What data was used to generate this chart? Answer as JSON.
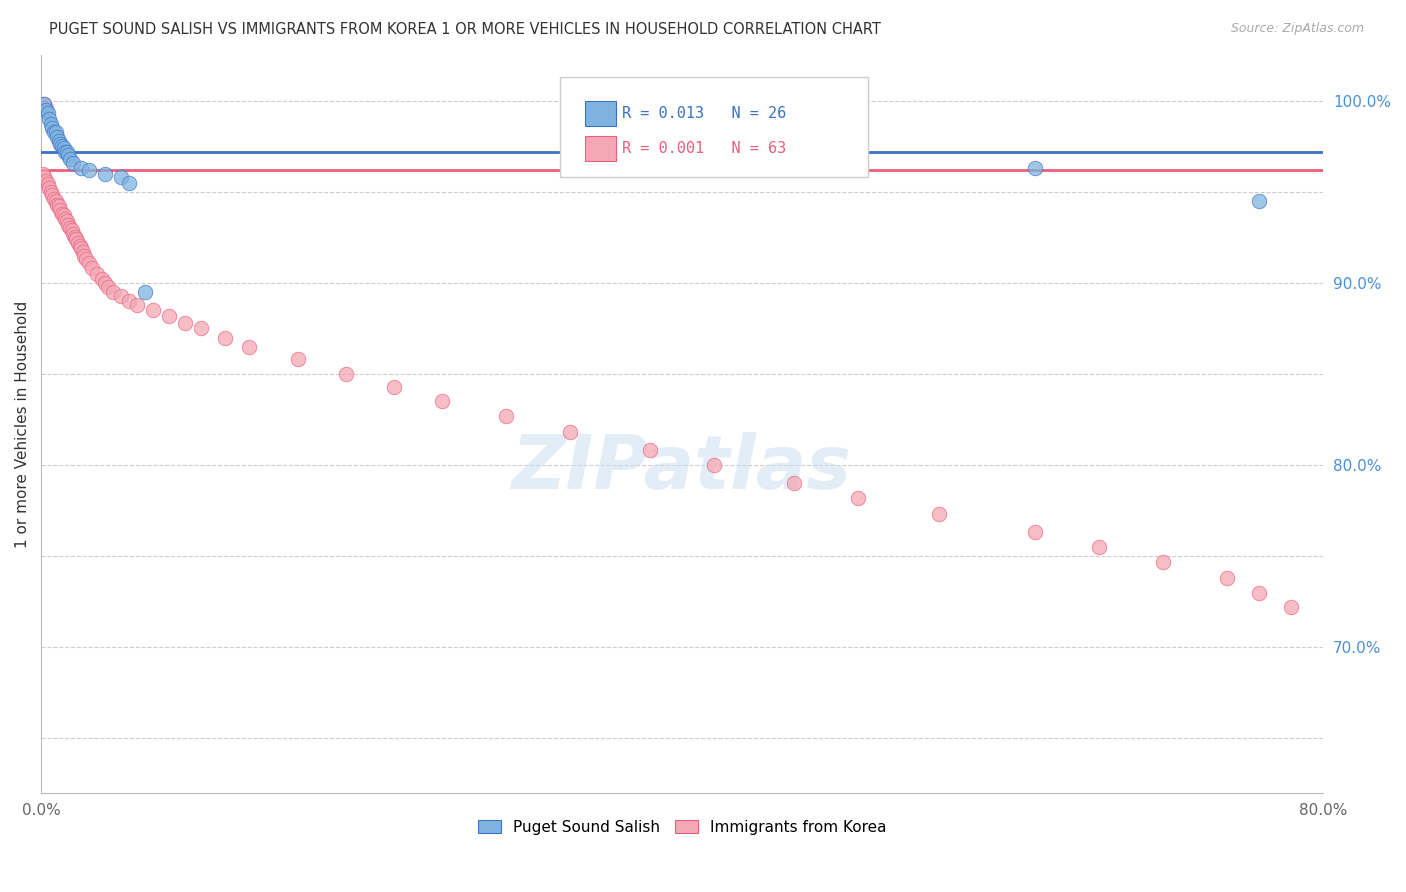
{
  "title": "PUGET SOUND SALISH VS IMMIGRANTS FROM KOREA 1 OR MORE VEHICLES IN HOUSEHOLD CORRELATION CHART",
  "source": "Source: ZipAtlas.com",
  "ylabel": "1 or more Vehicles in Household",
  "xlim": [
    0.0,
    0.8
  ],
  "ylim": [
    0.62,
    1.025
  ],
  "yticks": [
    0.65,
    0.7,
    0.75,
    0.8,
    0.85,
    0.9,
    0.95,
    1.0
  ],
  "yticklabels_right": [
    "",
    "70.0%",
    "",
    "80.0%",
    "",
    "90.0%",
    "",
    "100.0%"
  ],
  "xtick_positions": [
    0.0,
    0.1,
    0.2,
    0.3,
    0.4,
    0.5,
    0.6,
    0.7,
    0.8
  ],
  "legend_labels": [
    "Puget Sound Salish",
    "Immigrants from Korea"
  ],
  "blue_R": "0.013",
  "blue_N": "26",
  "pink_R": "0.001",
  "pink_N": "63",
  "blue_color": "#7EB3E0",
  "pink_color": "#F4A7B5",
  "blue_line_color": "#3A72C4",
  "pink_line_color": "#E8607A",
  "background_color": "#FFFFFF",
  "grid_color": "#CCCCCC",
  "blue_trend_y": 0.972,
  "pink_trend_y": 0.962,
  "blue_x": [
    0.002,
    0.003,
    0.004,
    0.005,
    0.006,
    0.007,
    0.008,
    0.009,
    0.01,
    0.011,
    0.012,
    0.013,
    0.014,
    0.015,
    0.016,
    0.017,
    0.018,
    0.02,
    0.025,
    0.03,
    0.04,
    0.05,
    0.055,
    0.065,
    0.62,
    0.76
  ],
  "blue_y": [
    0.998,
    0.995,
    0.993,
    0.99,
    0.987,
    0.985,
    0.983,
    0.983,
    0.98,
    0.978,
    0.976,
    0.975,
    0.974,
    0.972,
    0.972,
    0.97,
    0.968,
    0.966,
    0.963,
    0.962,
    0.96,
    0.958,
    0.955,
    0.895,
    0.963,
    0.945
  ],
  "pink_x": [
    0.001,
    0.002,
    0.003,
    0.004,
    0.005,
    0.006,
    0.007,
    0.008,
    0.009,
    0.01,
    0.011,
    0.012,
    0.013,
    0.014,
    0.015,
    0.016,
    0.017,
    0.018,
    0.019,
    0.02,
    0.021,
    0.022,
    0.023,
    0.024,
    0.025,
    0.026,
    0.027,
    0.028,
    0.03,
    0.032,
    0.035,
    0.038,
    0.04,
    0.042,
    0.045,
    0.05,
    0.055,
    0.06,
    0.07,
    0.08,
    0.09,
    0.1,
    0.115,
    0.13,
    0.16,
    0.19,
    0.22,
    0.25,
    0.29,
    0.33,
    0.38,
    0.42,
    0.47,
    0.51,
    0.56,
    0.62,
    0.66,
    0.7,
    0.74,
    0.76,
    0.78,
    0.002,
    0.003
  ],
  "pink_y": [
    0.96,
    0.958,
    0.956,
    0.954,
    0.952,
    0.95,
    0.948,
    0.946,
    0.945,
    0.943,
    0.942,
    0.94,
    0.938,
    0.937,
    0.935,
    0.934,
    0.932,
    0.93,
    0.929,
    0.927,
    0.925,
    0.924,
    0.922,
    0.92,
    0.919,
    0.917,
    0.915,
    0.913,
    0.911,
    0.908,
    0.905,
    0.902,
    0.9,
    0.898,
    0.895,
    0.893,
    0.89,
    0.888,
    0.885,
    0.882,
    0.878,
    0.875,
    0.87,
    0.865,
    0.858,
    0.85,
    0.843,
    0.835,
    0.827,
    0.818,
    0.808,
    0.8,
    0.79,
    0.782,
    0.773,
    0.763,
    0.755,
    0.747,
    0.738,
    0.73,
    0.722,
    0.998,
    0.996
  ]
}
